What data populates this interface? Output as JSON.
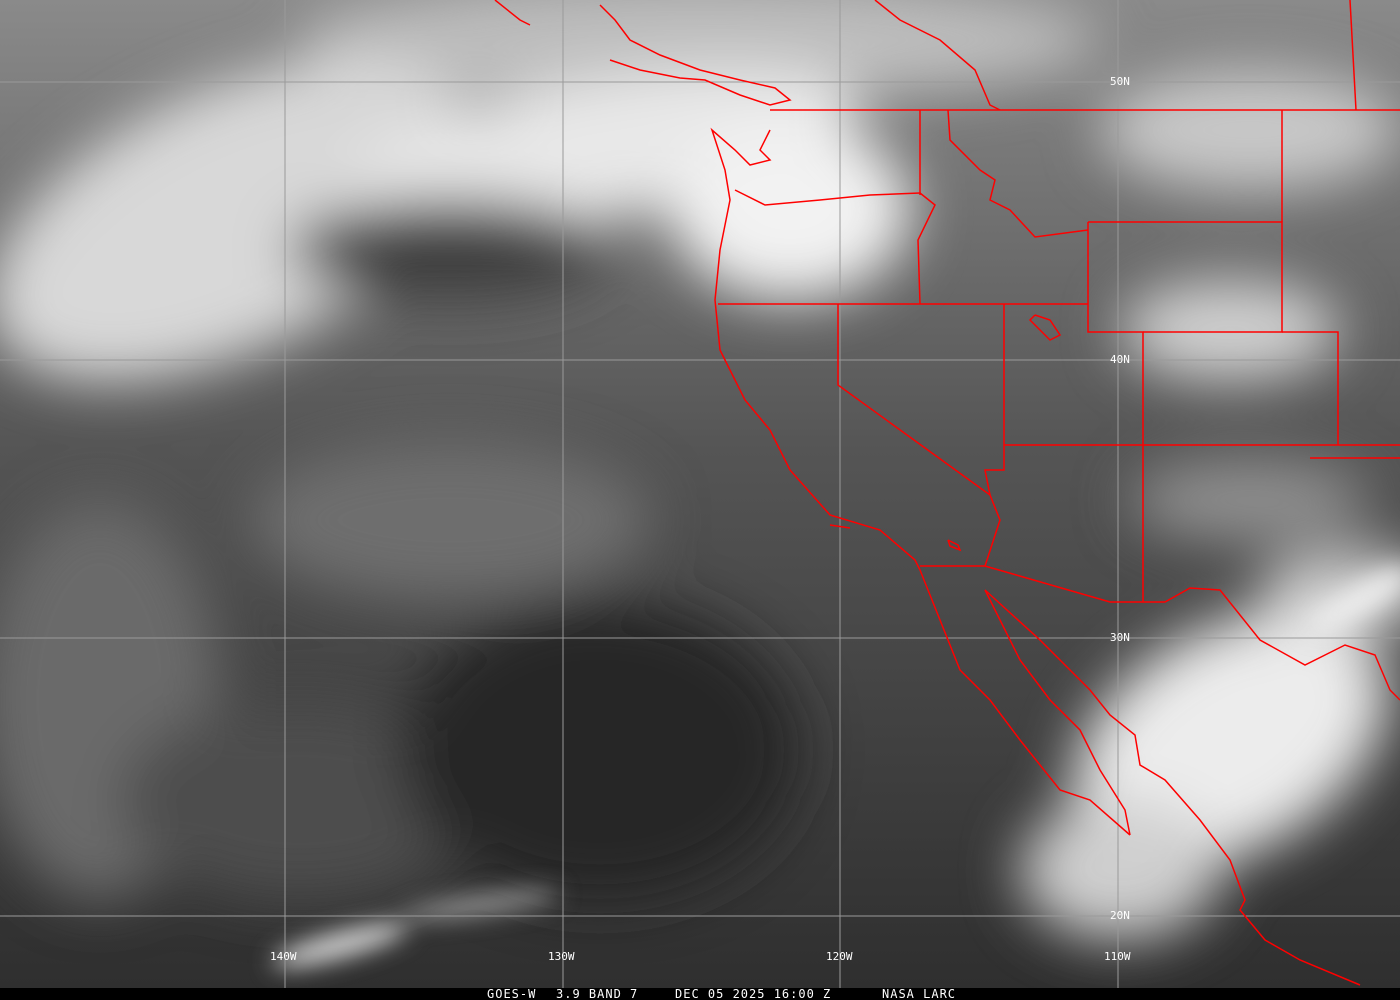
{
  "image": {
    "satellite": "GOES-W",
    "channel": "3.9 BAND 7",
    "datetime": "DEC 05 2025 16:00 Z",
    "credit": "NASA LARC"
  },
  "grid": {
    "longitudes": [
      "140W",
      "130W",
      "120W",
      "110W"
    ],
    "latitudes": [
      "50N",
      "40N",
      "30N",
      "20N"
    ]
  },
  "colors": {
    "borders": "#ff0000",
    "gridlines": "#9a9a9a",
    "ocean": "#3a3a3a",
    "clouds": "#f2f2f2"
  }
}
